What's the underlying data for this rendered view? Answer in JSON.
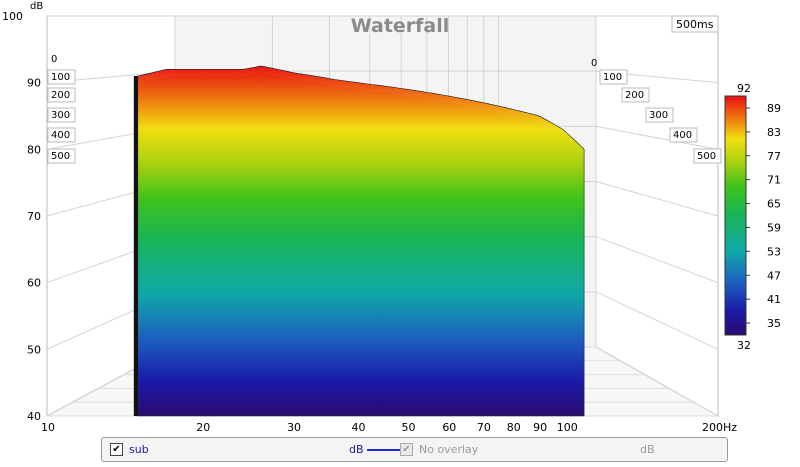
{
  "chart_data": {
    "type": "waterfall",
    "title": "Waterfall",
    "time_span_label": "500ms",
    "y_unit": "dB",
    "x_unit": "Hz",
    "y_range": [
      40,
      100
    ],
    "y_ticks": [
      40,
      50,
      60,
      70,
      80,
      90,
      100
    ],
    "x_range": [
      10,
      200
    ],
    "x_scale": "log",
    "x_ticks": [
      {
        "value": 10,
        "label": "10"
      },
      {
        "value": 20,
        "label": "20"
      },
      {
        "value": 30,
        "label": "30"
      },
      {
        "value": 40,
        "label": "40"
      },
      {
        "value": 50,
        "label": "50"
      },
      {
        "value": 60,
        "label": "60"
      },
      {
        "value": 70,
        "label": "70"
      },
      {
        "value": 80,
        "label": "80"
      },
      {
        "value": 90,
        "label": "90"
      },
      {
        "value": 100,
        "label": "100"
      },
      {
        "value": 200,
        "label": "200Hz"
      }
    ],
    "time_ticks_ms": [
      "0",
      "100",
      "200",
      "300",
      "400",
      "500"
    ],
    "color_scale": {
      "min_label": "32",
      "max_label": "92",
      "ticks": [
        "89",
        "83",
        "77",
        "71",
        "65",
        "59",
        "53",
        "47",
        "41",
        "35"
      ]
    },
    "waterfall_front_slice": {
      "frequency_hz": [
        15,
        16,
        17,
        18,
        19,
        20,
        22,
        24,
        26,
        28,
        30,
        33,
        36,
        40,
        45,
        50,
        55,
        60,
        70,
        80,
        90,
        100,
        110
      ],
      "level_db": [
        91,
        91.5,
        92,
        92,
        92,
        92,
        92,
        92,
        92.5,
        92,
        91.5,
        91,
        90.5,
        90,
        89.5,
        89,
        88.5,
        88,
        87,
        86,
        85,
        83,
        80
      ]
    }
  },
  "legend": {
    "items": [
      {
        "checked": true,
        "name": "sub",
        "unit": "dB",
        "enabled": true,
        "line_color": "#1e2ad8"
      },
      {
        "checked": true,
        "name": "No overlay",
        "unit": "dB",
        "enabled": false
      }
    ]
  }
}
